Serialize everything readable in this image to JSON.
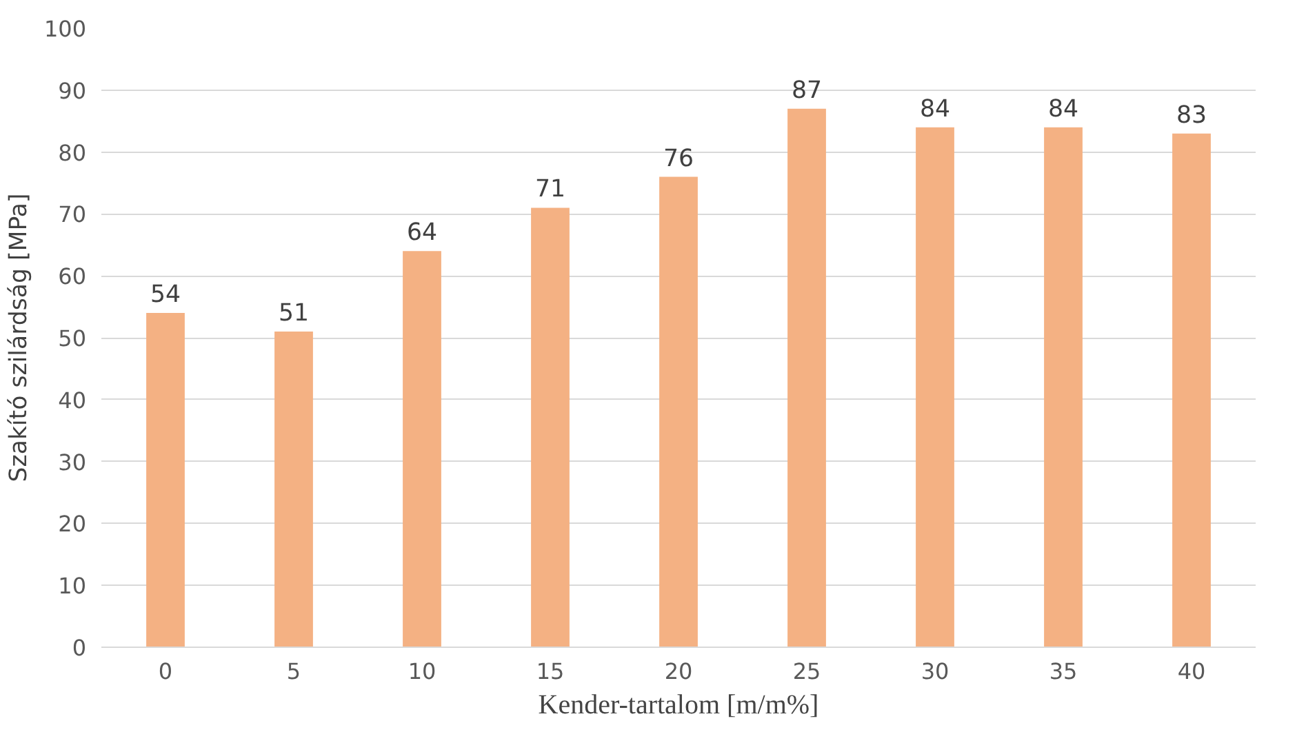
{
  "chart_data": {
    "type": "bar",
    "xlabel": "Kender-tartalom [m/m%]",
    "ylabel": "Szakító szilárdság [MPa]",
    "categories": [
      "0",
      "5",
      "10",
      "15",
      "20",
      "25",
      "30",
      "35",
      "40"
    ],
    "values": [
      54,
      51,
      64,
      71,
      76,
      87,
      84,
      84,
      83
    ],
    "color": "#f4b183",
    "ylim": [
      0,
      100
    ],
    "yticks": [
      0,
      10,
      20,
      30,
      40,
      50,
      60,
      70,
      80,
      90,
      100
    ],
    "grid": "y",
    "data_labels": true
  }
}
